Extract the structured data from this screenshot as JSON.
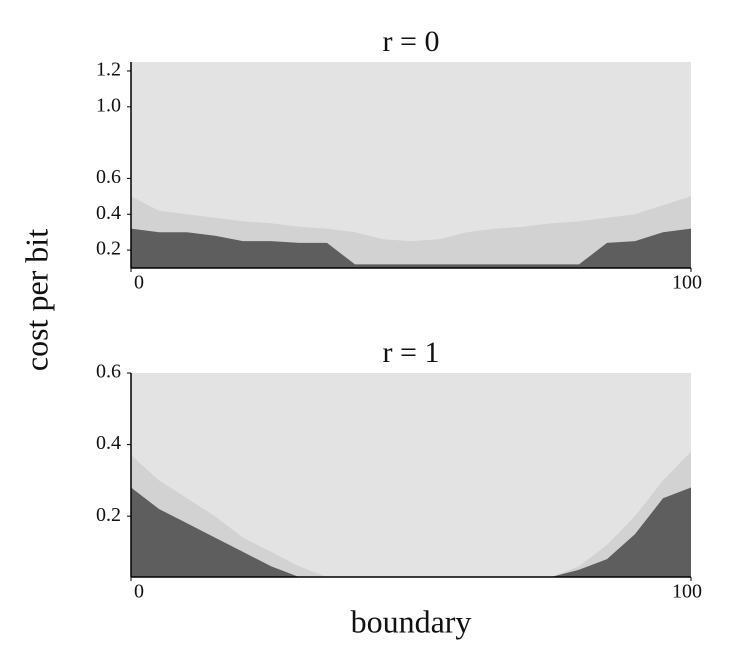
{
  "xlabel": "boundary",
  "ylabel": "cost per bit",
  "chart_data": [
    {
      "type": "area",
      "title": "r = 0",
      "background": "#e3e3e3",
      "x": [
        0,
        5,
        10,
        15,
        20,
        25,
        30,
        35,
        40,
        45,
        50,
        55,
        60,
        65,
        70,
        75,
        80,
        85,
        90,
        95,
        100
      ],
      "series": [
        {
          "color": "#d2d2d2",
          "values": [
            0.5,
            0.42,
            0.4,
            0.38,
            0.36,
            0.35,
            0.33,
            0.32,
            0.3,
            0.26,
            0.25,
            0.26,
            0.3,
            0.32,
            0.33,
            0.35,
            0.36,
            0.38,
            0.4,
            0.45,
            0.5
          ]
        },
        {
          "color": "#5e5e5e",
          "values": [
            0.32,
            0.3,
            0.3,
            0.28,
            0.25,
            0.25,
            0.24,
            0.24,
            0.12,
            0.12,
            0.12,
            0.12,
            0.12,
            0.12,
            0.12,
            0.12,
            0.12,
            0.24,
            0.25,
            0.3,
            0.32
          ]
        }
      ],
      "xlim": [
        0,
        100
      ],
      "xticks": [
        0,
        100
      ],
      "ylim": [
        0.1,
        1.25
      ],
      "yticks": [
        0.2,
        0.4,
        0.6,
        {
          "value": 1,
          "label": "1.0"
        },
        1.2
      ]
    },
    {
      "type": "area",
      "title": "r = 1",
      "background": "#e3e3e3",
      "x": [
        0,
        5,
        10,
        15,
        20,
        25,
        30,
        35,
        40,
        45,
        50,
        55,
        60,
        65,
        70,
        75,
        80,
        85,
        90,
        95,
        100
      ],
      "series": [
        {
          "color": "#d2d2d2",
          "values": [
            0.37,
            0.3,
            0.25,
            0.2,
            0.14,
            0.1,
            0.06,
            0.03,
            0.03,
            0.03,
            0.03,
            0.03,
            0.03,
            0.03,
            0.03,
            0.03,
            0.06,
            0.12,
            0.2,
            0.3,
            0.38
          ]
        },
        {
          "color": "#5e5e5e",
          "values": [
            0.28,
            0.22,
            0.18,
            0.14,
            0.1,
            0.06,
            0.03,
            0.03,
            0.03,
            0.03,
            0.03,
            0.03,
            0.03,
            0.03,
            0.03,
            0.03,
            0.05,
            0.08,
            0.15,
            0.25,
            0.28
          ]
        }
      ],
      "xlim": [
        0,
        100
      ],
      "xticks": [
        0,
        100
      ],
      "ylim": [
        0.03,
        0.6
      ],
      "yticks": [
        0.2,
        0.4,
        0.6
      ]
    }
  ]
}
